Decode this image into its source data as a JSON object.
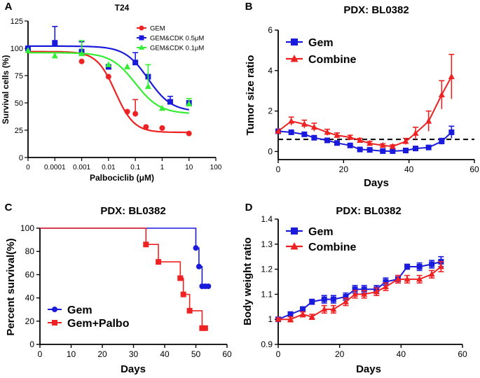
{
  "panels": {
    "A": "A",
    "B": "B",
    "C": "C",
    "D": "D"
  },
  "colors": {
    "red": "#ee2222",
    "blue": "#1a1adc",
    "green": "#33ee33",
    "black": "#000000"
  },
  "chart_data": [
    {
      "panel": "A",
      "type": "scatter",
      "title": "T24",
      "xlabel": "Palbociclib (μM)",
      "ylabel": "Survival cells (%)",
      "xscale": "log",
      "xtick_labels": [
        "0",
        "0.0001",
        "0.001",
        "0.01",
        "0.1",
        "1",
        "10",
        "100"
      ],
      "yticks": [
        0,
        25,
        50,
        75,
        100,
        125
      ],
      "ylim": [
        0,
        125
      ],
      "legend_position": "top-right",
      "series": [
        {
          "name": "GEM",
          "color": "#ee2222",
          "marker": "circle",
          "x": [
            0,
            0.001,
            0.01,
            0.05,
            0.1,
            0.25,
            1,
            10
          ],
          "y": [
            100,
            88,
            74,
            42,
            40,
            28,
            27,
            22
          ],
          "err": [
            0,
            0,
            0,
            0,
            13,
            0,
            0,
            0
          ],
          "fit": {
            "top": 97,
            "bottom": 23,
            "ec50": 0.018,
            "hill": 1.25
          }
        },
        {
          "name": "GEM&CDK 0.5μM",
          "color": "#1a1adc",
          "marker": "square",
          "x": [
            0,
            0.0001,
            0.001,
            0.01,
            0.1,
            0.3,
            2,
            10
          ],
          "y": [
            100,
            105,
            97,
            83,
            87,
            74,
            51,
            50
          ],
          "err": [
            0,
            15,
            9,
            0,
            9,
            0,
            5,
            0
          ],
          "fit": {
            "top": 102,
            "bottom": 42,
            "ec50": 0.3,
            "hill": 1.0
          }
        },
        {
          "name": "GEM&CDK 0.1μM",
          "color": "#33ee33",
          "marker": "triangle",
          "x": [
            0,
            0.0001,
            0.001,
            0.01,
            0.05,
            0.3,
            1,
            10
          ],
          "y": [
            98,
            93,
            95,
            85,
            83,
            65,
            45,
            49
          ],
          "err": [
            0,
            0,
            12,
            0,
            0,
            20,
            0,
            5
          ],
          "fit": {
            "top": 96,
            "bottom": 40,
            "ec50": 0.1,
            "hill": 0.95
          }
        }
      ]
    },
    {
      "panel": "B",
      "type": "line",
      "title": "PDX: BL0382",
      "xlabel": "Days",
      "ylabel": "Tumor size ratio",
      "xlim": [
        0,
        60
      ],
      "xticks": [
        0,
        20,
        40,
        60
      ],
      "ylim": [
        -0.4,
        6
      ],
      "yticks": [
        0,
        2,
        4,
        6
      ],
      "reference_line": 0.6,
      "legend_position": "top-left",
      "series": [
        {
          "name": "Gem",
          "color": "#1a1adc",
          "marker": "square",
          "x": [
            0,
            4,
            8,
            11,
            15,
            18,
            22,
            25,
            28,
            32,
            35,
            39,
            42,
            46,
            50,
            53
          ],
          "y": [
            1.0,
            0.95,
            0.85,
            0.68,
            0.55,
            0.42,
            0.3,
            0.1,
            0.08,
            0.02,
            0.02,
            0.05,
            0.15,
            0.2,
            0.5,
            0.95
          ],
          "err": [
            0,
            0.05,
            0.05,
            0.05,
            0.05,
            0.05,
            0.05,
            0.05,
            0.05,
            0.05,
            0.05,
            0.05,
            0.05,
            0.08,
            0.15,
            0.3
          ]
        },
        {
          "name": "Combine",
          "color": "#ee2222",
          "marker": "triangle",
          "x": [
            0,
            4,
            8,
            11,
            15,
            18,
            22,
            25,
            28,
            32,
            35,
            39,
            42,
            46,
            50,
            53
          ],
          "y": [
            1.0,
            1.5,
            1.35,
            1.2,
            0.95,
            0.8,
            0.7,
            0.55,
            0.4,
            0.3,
            0.25,
            0.5,
            0.9,
            1.5,
            2.8,
            3.7
          ],
          "err": [
            0,
            0.2,
            0.2,
            0.2,
            0.15,
            0.12,
            0.1,
            0.1,
            0.1,
            0.08,
            0.08,
            0.15,
            0.3,
            0.5,
            0.7,
            1.1
          ]
        }
      ]
    },
    {
      "panel": "C",
      "type": "line",
      "title": "PDX: BL0382",
      "xlabel": "Days",
      "ylabel": "Percent survival(%)",
      "xlim": [
        0,
        60
      ],
      "xticks": [
        0,
        10,
        20,
        30,
        40,
        50,
        60
      ],
      "ylim": [
        0,
        100
      ],
      "yticks": [
        0,
        20,
        40,
        60,
        80,
        100
      ],
      "legend_position": "bottom-left",
      "series": [
        {
          "name": "Gem",
          "color": "#1a1adc",
          "marker": "circle",
          "step": true,
          "x": [
            0,
            50,
            51,
            52,
            53,
            54
          ],
          "y": [
            100,
            83,
            67,
            50,
            50,
            50
          ],
          "markers_x": [
            50,
            51,
            52,
            53,
            54
          ],
          "markers_y": [
            83,
            67,
            50,
            50,
            50
          ]
        },
        {
          "name": "Gem+Palbo",
          "color": "#ee2222",
          "marker": "square",
          "step": true,
          "x": [
            0,
            34,
            38,
            45,
            46,
            48,
            52,
            53
          ],
          "y": [
            100,
            86,
            71,
            57,
            43,
            29,
            14,
            14
          ],
          "markers_x": [
            34,
            38,
            45,
            46,
            48,
            52,
            53
          ],
          "markers_y": [
            86,
            71,
            57,
            43,
            29,
            14,
            14
          ]
        }
      ]
    },
    {
      "panel": "D",
      "type": "line",
      "title": "PDX: BL0382",
      "xlabel": "Days",
      "ylabel": "Body weight ratio",
      "xlim": [
        0,
        60
      ],
      "xticks": [
        0,
        20,
        40,
        60
      ],
      "ylim": [
        0.9,
        1.4
      ],
      "yticks": [
        0.9,
        1.0,
        1.1,
        1.2,
        1.3,
        1.4
      ],
      "legend_position": "top-left",
      "series": [
        {
          "name": "Gem",
          "color": "#1a1adc",
          "marker": "square",
          "x": [
            0,
            4,
            8,
            11,
            15,
            18,
            22,
            25,
            28,
            32,
            35,
            39,
            42,
            46,
            50,
            53
          ],
          "y": [
            1.0,
            1.02,
            1.04,
            1.07,
            1.08,
            1.08,
            1.09,
            1.12,
            1.12,
            1.12,
            1.15,
            1.16,
            1.21,
            1.21,
            1.22,
            1.23
          ],
          "err": [
            0.005,
            0.01,
            0.01,
            0.01,
            0.015,
            0.015,
            0.015,
            0.015,
            0.015,
            0.015,
            0.015,
            0.015,
            0.01,
            0.015,
            0.015,
            0.02
          ]
        },
        {
          "name": "Combine",
          "color": "#ee2222",
          "marker": "triangle",
          "x": [
            0,
            4,
            8,
            11,
            15,
            18,
            22,
            25,
            28,
            32,
            35,
            39,
            42,
            46,
            50,
            53
          ],
          "y": [
            1.0,
            1.0,
            1.02,
            1.01,
            1.04,
            1.04,
            1.07,
            1.1,
            1.1,
            1.11,
            1.13,
            1.16,
            1.16,
            1.16,
            1.18,
            1.21
          ],
          "err": [
            0.005,
            0.01,
            0.01,
            0.01,
            0.015,
            0.015,
            0.015,
            0.015,
            0.015,
            0.015,
            0.015,
            0.015,
            0.015,
            0.015,
            0.015,
            0.02
          ]
        }
      ]
    }
  ]
}
